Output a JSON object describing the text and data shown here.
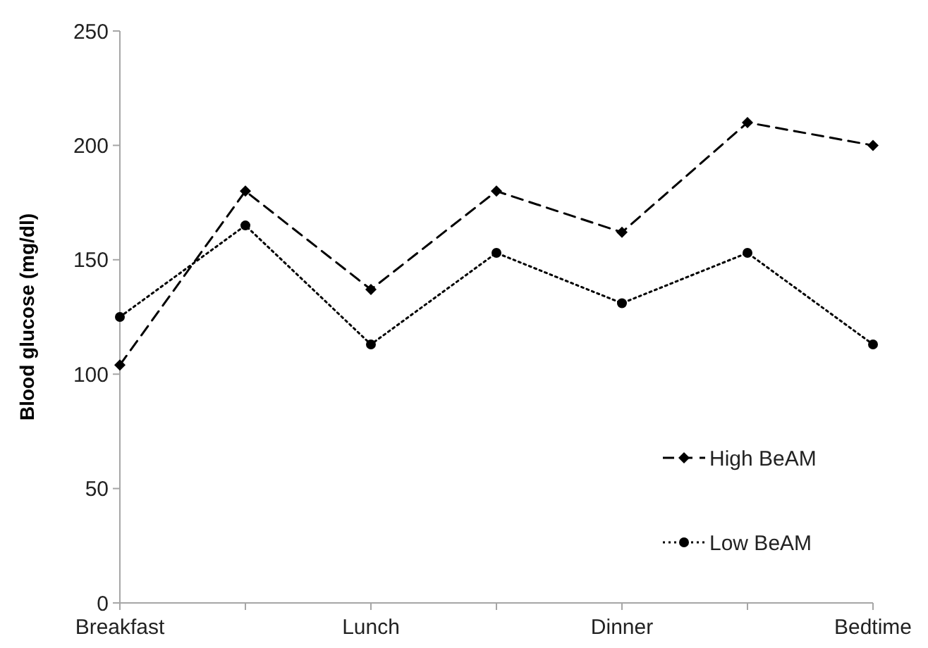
{
  "chart_data": {
    "type": "line",
    "ylabel": "Blood glucose (mg/dl)",
    "categories": [
      "Breakfast",
      null,
      "Lunch",
      null,
      "Dinner",
      null,
      "Bedtime"
    ],
    "series": [
      {
        "name": "High BeAM",
        "color": "#000000",
        "marker": "diamond",
        "line_style": "dashed",
        "values": [
          104,
          180,
          137,
          180,
          162,
          210,
          200
        ]
      },
      {
        "name": "Low BeAM",
        "color": "#000000",
        "marker": "circle",
        "line_style": "dotted",
        "values": [
          125,
          165,
          113,
          153,
          131,
          153,
          113
        ]
      }
    ],
    "ylim": [
      0,
      250
    ],
    "yticks": [
      0,
      50,
      100,
      150,
      200,
      250
    ],
    "grid": false,
    "legend": "bottom right"
  }
}
